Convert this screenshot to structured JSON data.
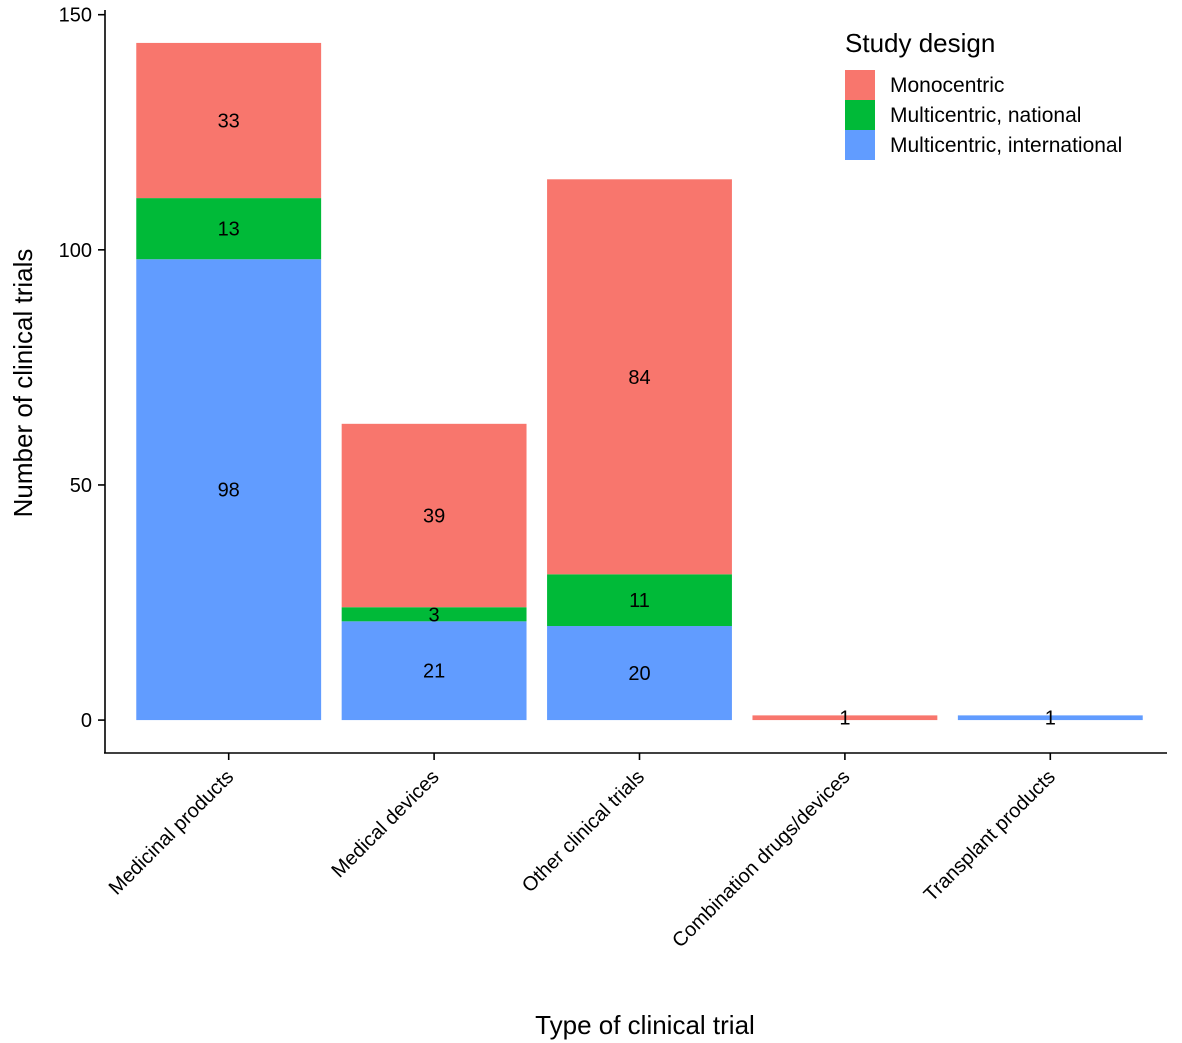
{
  "chart_data": {
    "type": "bar",
    "stacked": true,
    "xlabel": "Type of clinical trial",
    "ylabel": "Number of clinical trials",
    "ylim": [
      -7,
      151
    ],
    "yticks": [
      0,
      50,
      100,
      150
    ],
    "categories": [
      "Medicinal products",
      "Medical devices",
      "Other clinical trials",
      "Combination drugs/devices",
      "Transplant products"
    ],
    "legend": {
      "title": "Study design",
      "position": "top-right"
    },
    "series": [
      {
        "name": "Multicentric, international",
        "color": "#619CFF",
        "values": [
          98,
          21,
          20,
          0,
          1
        ]
      },
      {
        "name": "Multicentric, national",
        "color": "#00BA38",
        "values": [
          13,
          3,
          11,
          0,
          0
        ]
      },
      {
        "name": "Monocentric",
        "color": "#F8766D",
        "values": [
          33,
          39,
          84,
          1,
          0
        ]
      }
    ],
    "legend_order": [
      "Monocentric",
      "Multicentric, national",
      "Multicentric, international"
    ]
  }
}
